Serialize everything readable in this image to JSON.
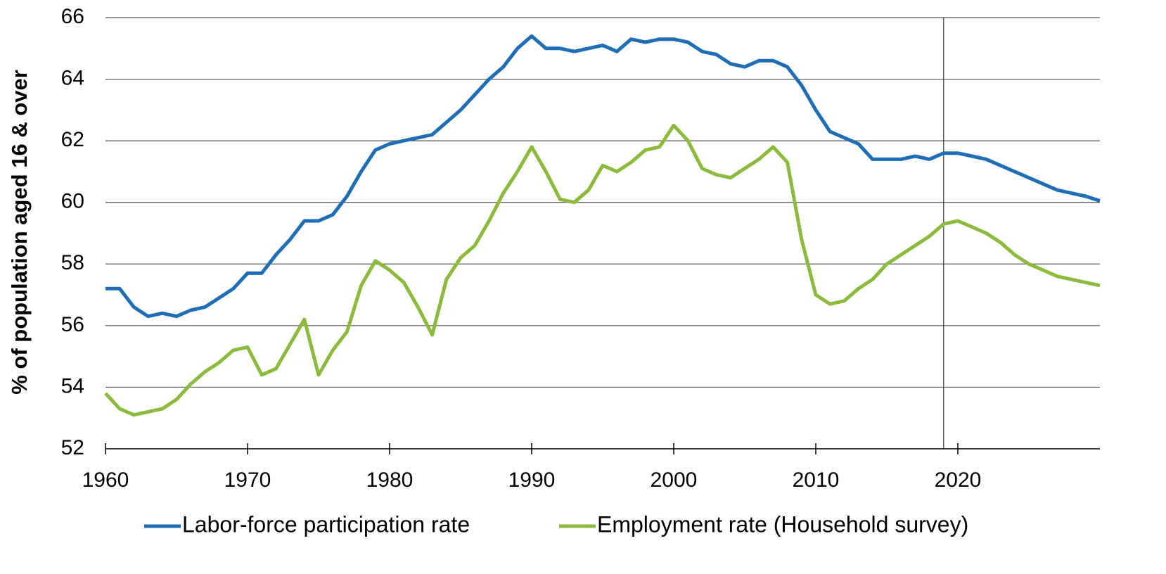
{
  "chart_data": {
    "type": "line",
    "y_label": "% of population aged 16 & over",
    "x": [
      1960,
      1961,
      1962,
      1963,
      1964,
      1965,
      1966,
      1967,
      1968,
      1969,
      1970,
      1971,
      1972,
      1973,
      1974,
      1975,
      1976,
      1977,
      1978,
      1979,
      1980,
      1981,
      1982,
      1983,
      1984,
      1985,
      1986,
      1987,
      1988,
      1989,
      1990,
      1991,
      1992,
      1993,
      1994,
      1995,
      1996,
      1997,
      1998,
      1999,
      2000,
      2001,
      2002,
      2003,
      2004,
      2005,
      2006,
      2007,
      2008,
      2009,
      2010,
      2011,
      2012,
      2013,
      2014,
      2015,
      2016,
      2017,
      2018,
      2019,
      2020,
      2021,
      2022,
      2023,
      2024,
      2025,
      2026,
      2027,
      2028,
      2029,
      2030
    ],
    "series": [
      {
        "name": "Labor-force participation rate",
        "color": "#1f6db4",
        "values": [
          57.2,
          57.2,
          56.6,
          56.3,
          56.4,
          56.3,
          56.5,
          56.6,
          56.9,
          57.2,
          57.7,
          57.7,
          58.3,
          58.8,
          59.4,
          59.4,
          59.6,
          60.2,
          61.0,
          61.7,
          61.9,
          62.0,
          62.1,
          62.2,
          62.6,
          63.0,
          63.5,
          64.0,
          64.4,
          65.0,
          65.4,
          65.0,
          65.0,
          64.9,
          65.0,
          65.1,
          64.9,
          65.3,
          65.2,
          65.3,
          65.3,
          65.2,
          64.9,
          64.8,
          64.5,
          64.4,
          64.6,
          64.6,
          64.4,
          63.8,
          63.0,
          62.3,
          62.1,
          61.9,
          61.4,
          61.4,
          61.4,
          61.5,
          61.4,
          61.6,
          61.6,
          61.5,
          61.4,
          61.2,
          61.0,
          60.8,
          60.6,
          60.4,
          60.3,
          60.2,
          60.05
        ]
      },
      {
        "name": "Employment rate (Household survey)",
        "color": "#8cba3c",
        "values": [
          53.8,
          53.3,
          53.1,
          53.2,
          53.3,
          53.6,
          54.1,
          54.5,
          54.8,
          55.2,
          55.3,
          54.4,
          54.6,
          55.4,
          56.2,
          54.4,
          55.2,
          55.8,
          57.3,
          58.1,
          57.8,
          57.4,
          56.6,
          55.7,
          57.5,
          58.2,
          58.6,
          59.4,
          60.3,
          61.0,
          61.8,
          61.0,
          60.1,
          60.0,
          60.4,
          61.2,
          61.0,
          61.3,
          61.7,
          61.8,
          62.5,
          62.0,
          61.1,
          60.9,
          60.8,
          61.1,
          61.4,
          61.8,
          61.3,
          58.8,
          57.0,
          56.7,
          56.8,
          57.2,
          57.5,
          58.0,
          58.3,
          58.6,
          58.9,
          59.3,
          59.4,
          59.2,
          59.0,
          58.7,
          58.3,
          58.0,
          57.8,
          57.6,
          57.5,
          57.4,
          57.3
        ]
      }
    ],
    "xlim": [
      1960,
      2030
    ],
    "xticks": [
      1960,
      1970,
      1980,
      1990,
      2000,
      2010,
      2020
    ],
    "ylim": [
      52,
      66
    ],
    "yticks": [
      52,
      54,
      56,
      58,
      60,
      62,
      64,
      66
    ],
    "grid": true,
    "reference_line_x": 2019,
    "legend": "bottom"
  }
}
